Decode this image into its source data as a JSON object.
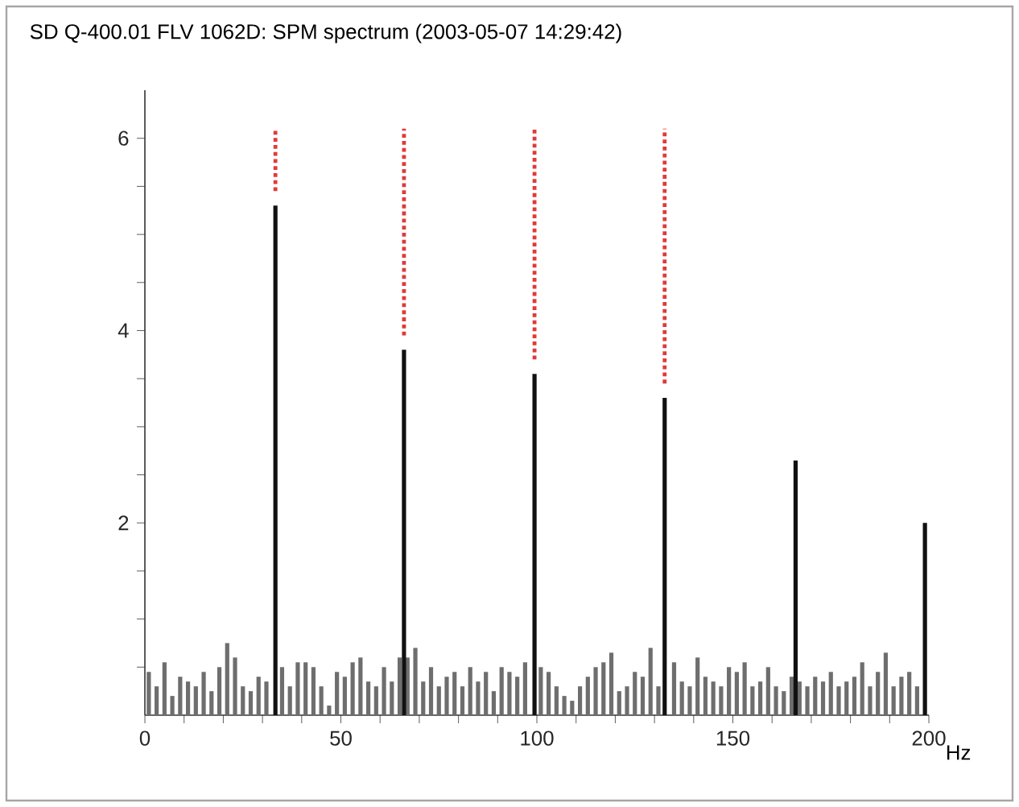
{
  "chart_data": {
    "type": "bar",
    "title": "SD    Q-400.01  FLV 1062D: SPM spectrum (2003-05-07 14:29:42)",
    "xlabel": "Hz",
    "xlim": [
      0,
      200
    ],
    "ylim": [
      0,
      6.5
    ],
    "xticks": [
      0,
      {
        "value": 10,
        "label": null
      },
      {
        "value": 20,
        "label": null
      },
      {
        "value": 30,
        "label": null
      },
      {
        "value": 40,
        "label": null
      },
      50,
      {
        "value": 60,
        "label": null
      },
      {
        "value": 70,
        "label": null
      },
      {
        "value": 80,
        "label": null
      },
      {
        "value": 90,
        "label": null
      },
      100,
      {
        "value": 110,
        "label": null
      },
      {
        "value": 120,
        "label": null
      },
      {
        "value": 130,
        "label": null
      },
      {
        "value": 140,
        "label": null
      },
      150,
      {
        "value": 160,
        "label": null
      },
      {
        "value": 170,
        "label": null
      },
      {
        "value": 180,
        "label": null
      },
      {
        "value": 190,
        "label": null
      },
      200
    ],
    "yticks": [
      {
        "value": 0.5,
        "label": null
      },
      {
        "value": 1,
        "label": null
      },
      {
        "value": 1.5,
        "label": null
      },
      2,
      {
        "value": 2.5,
        "label": null
      },
      {
        "value": 3,
        "label": null
      },
      {
        "value": 3.5,
        "label": null
      },
      4,
      {
        "value": 4.5,
        "label": null
      },
      {
        "value": 5,
        "label": null
      },
      {
        "value": 5.5,
        "label": null
      },
      6
    ],
    "series": [
      {
        "color": "#6e6e6e",
        "x": [
          1,
          3,
          5,
          7,
          9,
          11,
          13,
          15,
          17,
          19,
          21,
          23,
          25,
          27,
          29,
          31,
          33,
          35,
          37,
          39,
          41,
          43,
          45,
          47,
          49,
          51,
          53,
          55,
          57,
          59,
          61,
          63,
          65,
          67,
          69,
          71,
          73,
          75,
          77,
          79,
          81,
          83,
          85,
          87,
          89,
          91,
          93,
          95,
          97,
          99,
          101,
          103,
          105,
          107,
          109,
          111,
          113,
          115,
          117,
          119,
          121,
          123,
          125,
          127,
          129,
          131,
          133,
          135,
          137,
          139,
          141,
          143,
          145,
          147,
          149,
          151,
          153,
          155,
          157,
          159,
          161,
          163,
          165,
          167,
          169,
          171,
          173,
          175,
          177,
          179,
          181,
          183,
          185,
          187,
          189,
          191,
          193,
          195,
          197
        ],
        "values": [
          0.45,
          0.3,
          0.55,
          0.2,
          0.4,
          0.35,
          0.3,
          0.45,
          0.25,
          0.5,
          0.75,
          0.6,
          0.3,
          0.25,
          0.4,
          0.35,
          null,
          0.5,
          0.3,
          0.55,
          0.55,
          0.5,
          0.3,
          0.1,
          0.45,
          0.4,
          0.55,
          0.6,
          0.35,
          0.3,
          0.5,
          0.35,
          0.6,
          0.6,
          0.7,
          0.35,
          0.5,
          0.3,
          0.4,
          0.45,
          0.3,
          0.5,
          0.35,
          0.45,
          0.25,
          0.5,
          0.45,
          0.4,
          0.55,
          null,
          0.5,
          0.45,
          0.3,
          0.2,
          0.15,
          0.3,
          0.4,
          0.5,
          0.55,
          0.65,
          0.25,
          0.3,
          0.45,
          0.4,
          0.7,
          0.3,
          null,
          0.55,
          0.35,
          0.3,
          0.6,
          0.4,
          0.35,
          0.3,
          0.5,
          0.45,
          0.55,
          0.3,
          0.35,
          0.5,
          0.3,
          0.25,
          0.4,
          0.35,
          0.3,
          0.4,
          0.35,
          0.45,
          0.3,
          0.35,
          0.4,
          0.55,
          0.3,
          0.45,
          0.65,
          0.3,
          0.4,
          0.45,
          0.3
        ]
      },
      {
        "color": "#111111",
        "x": [
          33.3,
          66.1,
          99.4,
          132.6,
          166,
          199
        ],
        "values": [
          5.3,
          3.8,
          3.55,
          3.3,
          2.65,
          2.0
        ]
      },
      {
        "type": "line",
        "line_style": "dotted",
        "color": "#e03a3a",
        "x": [
          33.3,
          33.3
        ],
        "values": [
          5.45,
          6.1
        ]
      },
      {
        "type": "line",
        "line_style": "dotted",
        "color": "#e03a3a",
        "x": [
          66.1,
          66.1
        ],
        "values": [
          3.95,
          6.1
        ]
      },
      {
        "type": "line",
        "line_style": "dotted",
        "color": "#e03a3a",
        "x": [
          99.4,
          99.4
        ],
        "values": [
          3.7,
          6.1
        ]
      },
      {
        "type": "line",
        "line_style": "dotted",
        "color": "#e03a3a",
        "x": [
          132.6,
          132.6
        ],
        "values": [
          3.45,
          6.1
        ]
      }
    ]
  }
}
